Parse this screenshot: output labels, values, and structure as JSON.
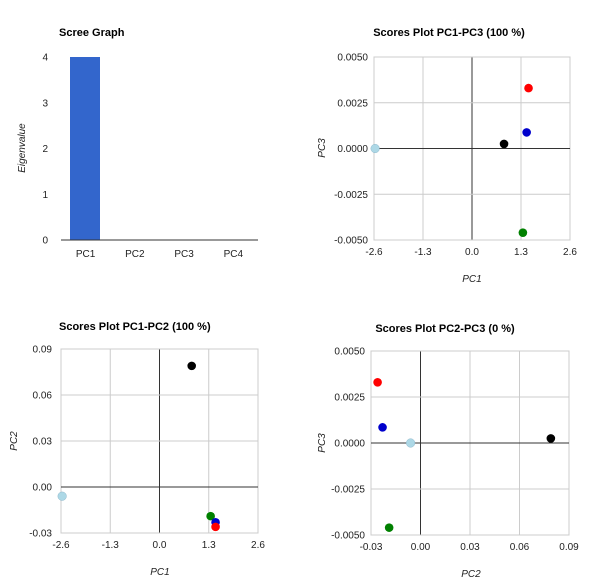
{
  "chart_data": [
    {
      "type": "bar",
      "title": "Scree Graph",
      "xlabel": "",
      "ylabel": "Eigenvalue",
      "categories": [
        "PC1",
        "PC2",
        "PC3",
        "PC4"
      ],
      "values": [
        4,
        0,
        0,
        0
      ],
      "ylim": [
        0,
        4
      ],
      "yticks": [
        "0",
        "1",
        "2",
        "3",
        "4"
      ],
      "grid": false,
      "colors": {
        "bar": "#3366cc"
      }
    },
    {
      "type": "scatter",
      "title": "Scores Plot PC1-PC3 (100 %)",
      "xlabel": "PC1",
      "ylabel": "PC3",
      "xlim": [
        -2.6,
        2.6
      ],
      "ylim": [
        -0.005,
        0.005
      ],
      "xticks": [
        "-2.6",
        "-1.3",
        "0.0",
        "1.3",
        "2.6"
      ],
      "yticks": [
        "-0.0050",
        "-0.0025",
        "0.0000",
        "0.0025",
        "0.0050"
      ],
      "grid": true,
      "points": [
        {
          "x": -2.57,
          "y": 0.0,
          "color": "#add8e6"
        },
        {
          "x": 0.85,
          "y": 0.00025,
          "color": "#000000"
        },
        {
          "x": 1.5,
          "y": 0.0033,
          "color": "#ff0000"
        },
        {
          "x": 1.45,
          "y": 0.00088,
          "color": "#0000cc"
        },
        {
          "x": 1.35,
          "y": -0.0046,
          "color": "#008000"
        }
      ]
    },
    {
      "type": "scatter",
      "title": "Scores Plot PC1-PC2 (100 %)",
      "xlabel": "PC1",
      "ylabel": "PC2",
      "xlim": [
        -2.6,
        2.6
      ],
      "ylim": [
        -0.03,
        0.09
      ],
      "xticks": [
        "-2.6",
        "-1.3",
        "0.0",
        "1.3",
        "2.6"
      ],
      "yticks": [
        "-0.03",
        "0.00",
        "0.03",
        "0.06",
        "0.09"
      ],
      "grid": true,
      "points": [
        {
          "x": -2.57,
          "y": -0.006,
          "color": "#add8e6"
        },
        {
          "x": 0.85,
          "y": 0.079,
          "color": "#000000"
        },
        {
          "x": 1.35,
          "y": -0.019,
          "color": "#008000"
        },
        {
          "x": 1.48,
          "y": -0.023,
          "color": "#0000cc"
        },
        {
          "x": 1.48,
          "y": -0.026,
          "color": "#ff0000"
        }
      ]
    },
    {
      "type": "scatter",
      "title": "Scores Plot PC2-PC3 (0 %)",
      "xlabel": "PC2",
      "ylabel": "PC3",
      "xlim": [
        -0.03,
        0.09
      ],
      "ylim": [
        -0.005,
        0.005
      ],
      "xticks": [
        "-0.03",
        "0.00",
        "0.03",
        "0.06",
        "0.09"
      ],
      "yticks": [
        "-0.0050",
        "-0.0025",
        "0.0000",
        "0.0025",
        "0.0050"
      ],
      "grid": true,
      "points": [
        {
          "x": -0.026,
          "y": 0.0033,
          "color": "#ff0000"
        },
        {
          "x": -0.023,
          "y": 0.00085,
          "color": "#0000cc"
        },
        {
          "x": -0.006,
          "y": 0.0,
          "color": "#add8e6"
        },
        {
          "x": -0.019,
          "y": -0.0046,
          "color": "#008000"
        },
        {
          "x": 0.079,
          "y": 0.00025,
          "color": "#000000"
        }
      ]
    }
  ]
}
